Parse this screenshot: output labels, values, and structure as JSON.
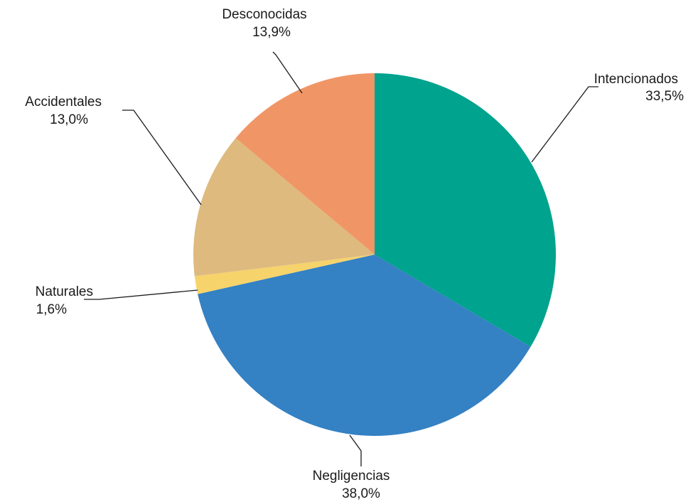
{
  "chart_data": {
    "type": "pie",
    "title": "",
    "slices": [
      {
        "label": "Intencionados",
        "value": 33.5,
        "value_label": "33,5%",
        "color": "#00A38D"
      },
      {
        "label": "Negligencias",
        "value": 38.0,
        "value_label": "38,0%",
        "color": "#3481C4"
      },
      {
        "label": "Naturales",
        "value": 1.6,
        "value_label": "1,6%",
        "color": "#F6D36B"
      },
      {
        "label": "Accidentales",
        "value": 13.0,
        "value_label": "13,0%",
        "color": "#DEBA7F"
      },
      {
        "label": "Desconocidas",
        "value": 13.9,
        "value_label": "13,9%",
        "color": "#F09666"
      }
    ],
    "start": "12 o'clock",
    "direction": "clockwise",
    "legend": "none (labels outside slices with leader lines)"
  }
}
